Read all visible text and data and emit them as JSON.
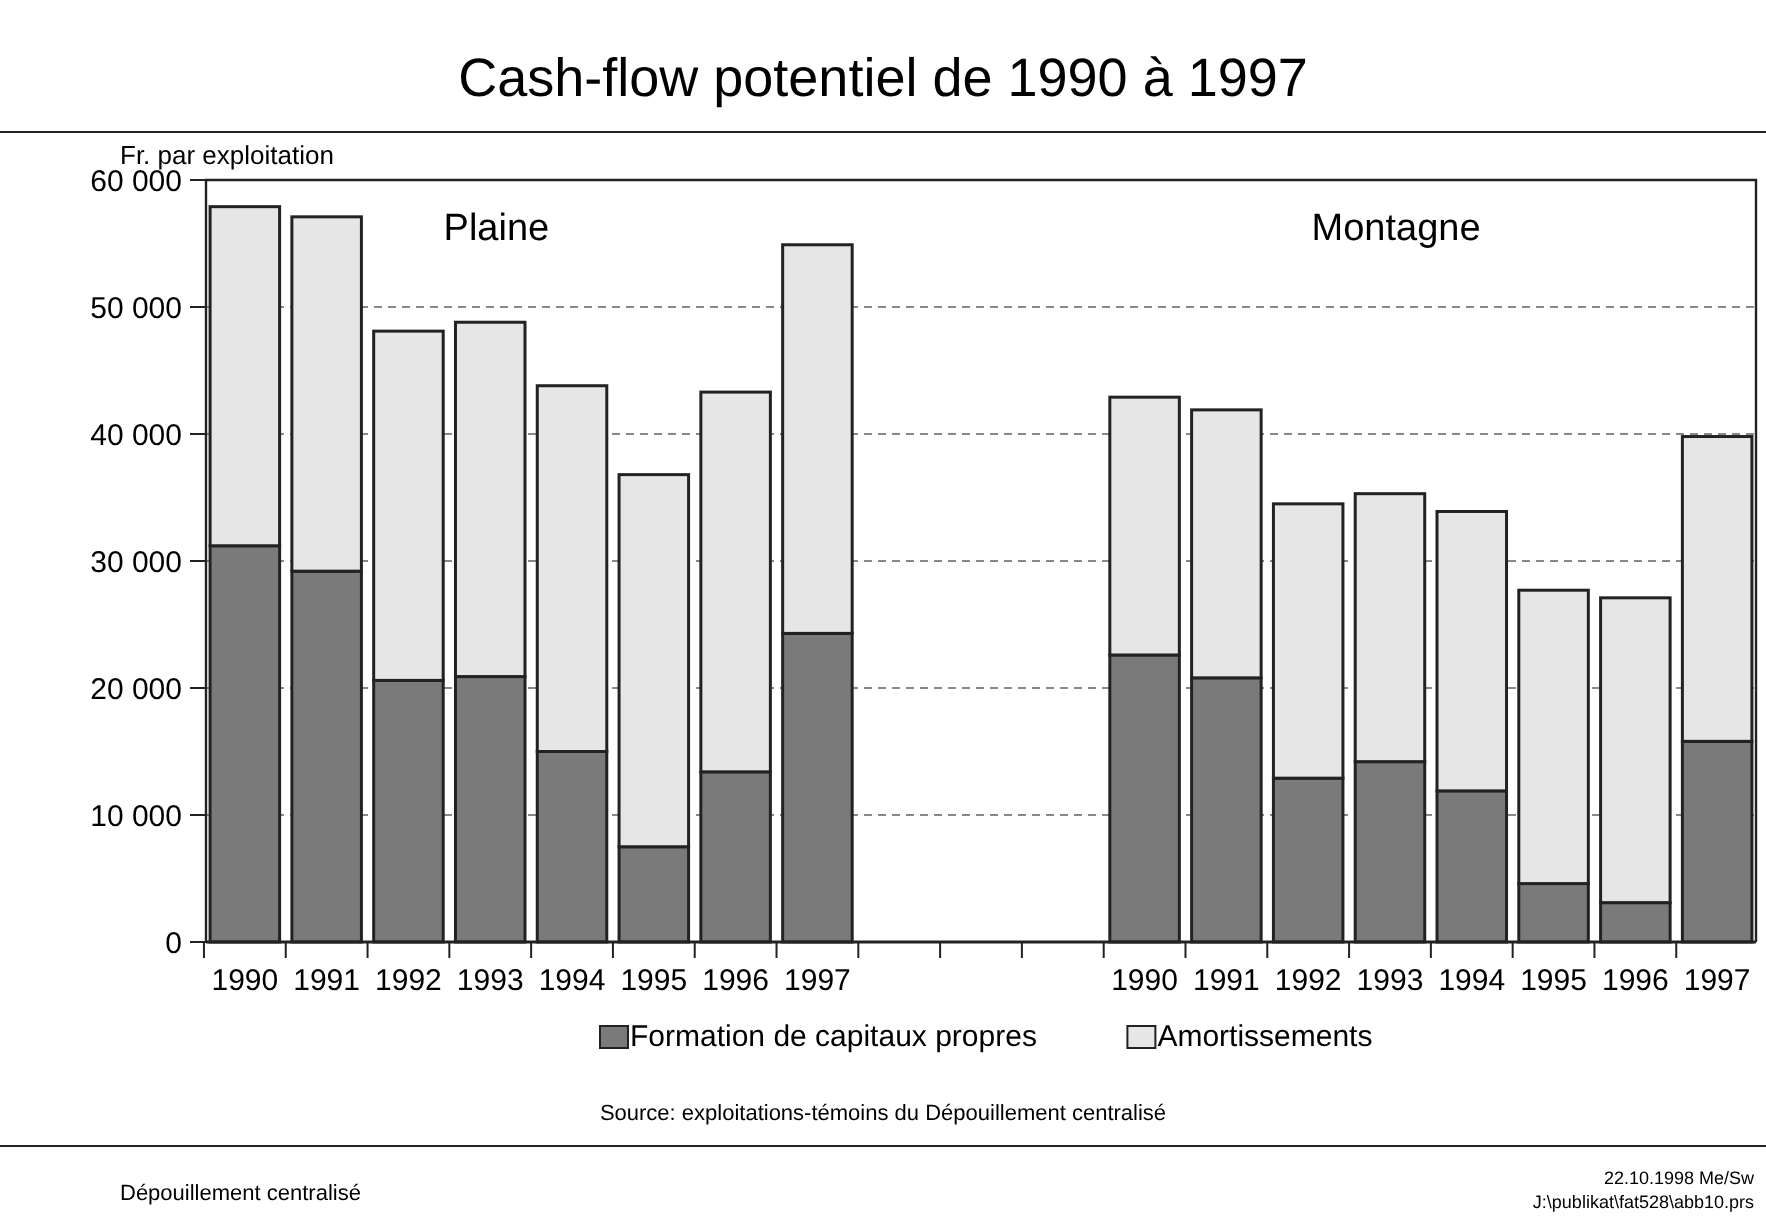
{
  "chart_data": {
    "type": "bar",
    "title": "Cash-flow potentiel de 1990 à 1997",
    "ylabel": "Fr. par exploitation",
    "categories": [
      "1990",
      "1991",
      "1992",
      "1993",
      "1994",
      "1995",
      "1996",
      "1997",
      null,
      null,
      null,
      "1990",
      "1991",
      "1992",
      "1993",
      "1994",
      "1995",
      "1996",
      "1997"
    ],
    "stacked": true,
    "series": [
      {
        "name": "Formation de capitaux propres",
        "color": "#7a7a7a",
        "values": [
          31200,
          29200,
          20600,
          20900,
          15000,
          7500,
          13400,
          24300,
          null,
          null,
          null,
          22600,
          20800,
          12900,
          14200,
          11900,
          4600,
          3100,
          15800
        ]
      },
      {
        "name": "Amortissements",
        "color": "#e6e6e6",
        "values": [
          26700,
          27900,
          27500,
          27900,
          28800,
          29300,
          29900,
          30600,
          null,
          null,
          null,
          20300,
          21100,
          21600,
          21100,
          22000,
          23100,
          24000,
          24000
        ]
      }
    ],
    "ylim": [
      0,
      60000
    ],
    "yticks": [
      {
        "value": 0,
        "label": "0"
      },
      {
        "value": 10000,
        "label": "10 000"
      },
      {
        "value": 20000,
        "label": "20 000"
      },
      {
        "value": 30000,
        "label": "30 000"
      },
      {
        "value": 40000,
        "label": "40 000"
      },
      {
        "value": 50000,
        "label": "50 000"
      },
      {
        "value": 60000,
        "label": "60 000"
      }
    ],
    "grid": "y",
    "legend": "bottom",
    "annotations": [
      "Plaine",
      "Montagne",
      "Source: exploitations-témoins du Dépouillement centralisé",
      "Dépouillement centralisé",
      "22.10.1998 Me/Sw",
      "J:\\publikat\\fat528\\abb10.prs"
    ]
  }
}
